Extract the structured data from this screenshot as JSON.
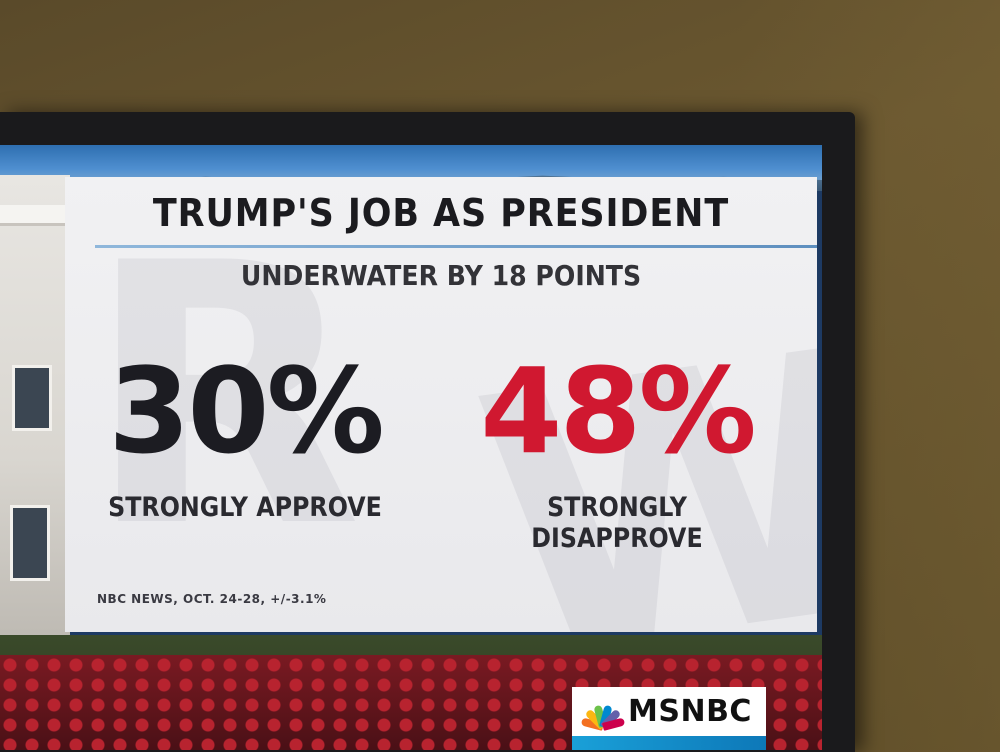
{
  "graphic": {
    "title": "TRUMP'S JOB AS PRESIDENT",
    "subtitle": "UNDERWATER BY 18 POINTS",
    "stats": [
      {
        "value": "30%",
        "label": "STRONGLY APPROVE",
        "color": "#1c1c22"
      },
      {
        "value": "48%",
        "label": "STRONGLY DISAPPROVE",
        "color": "#d01830"
      }
    ],
    "source": "NBC NEWS, OCT. 24-28, +/-3.1%"
  },
  "network": {
    "name": "MSNBC",
    "logo_icon": "nbc-peacock-icon",
    "peacock_colors": [
      "#f37021",
      "#fcb711",
      "#6cc24a",
      "#0089d0",
      "#6460aa",
      "#cc004c"
    ]
  }
}
